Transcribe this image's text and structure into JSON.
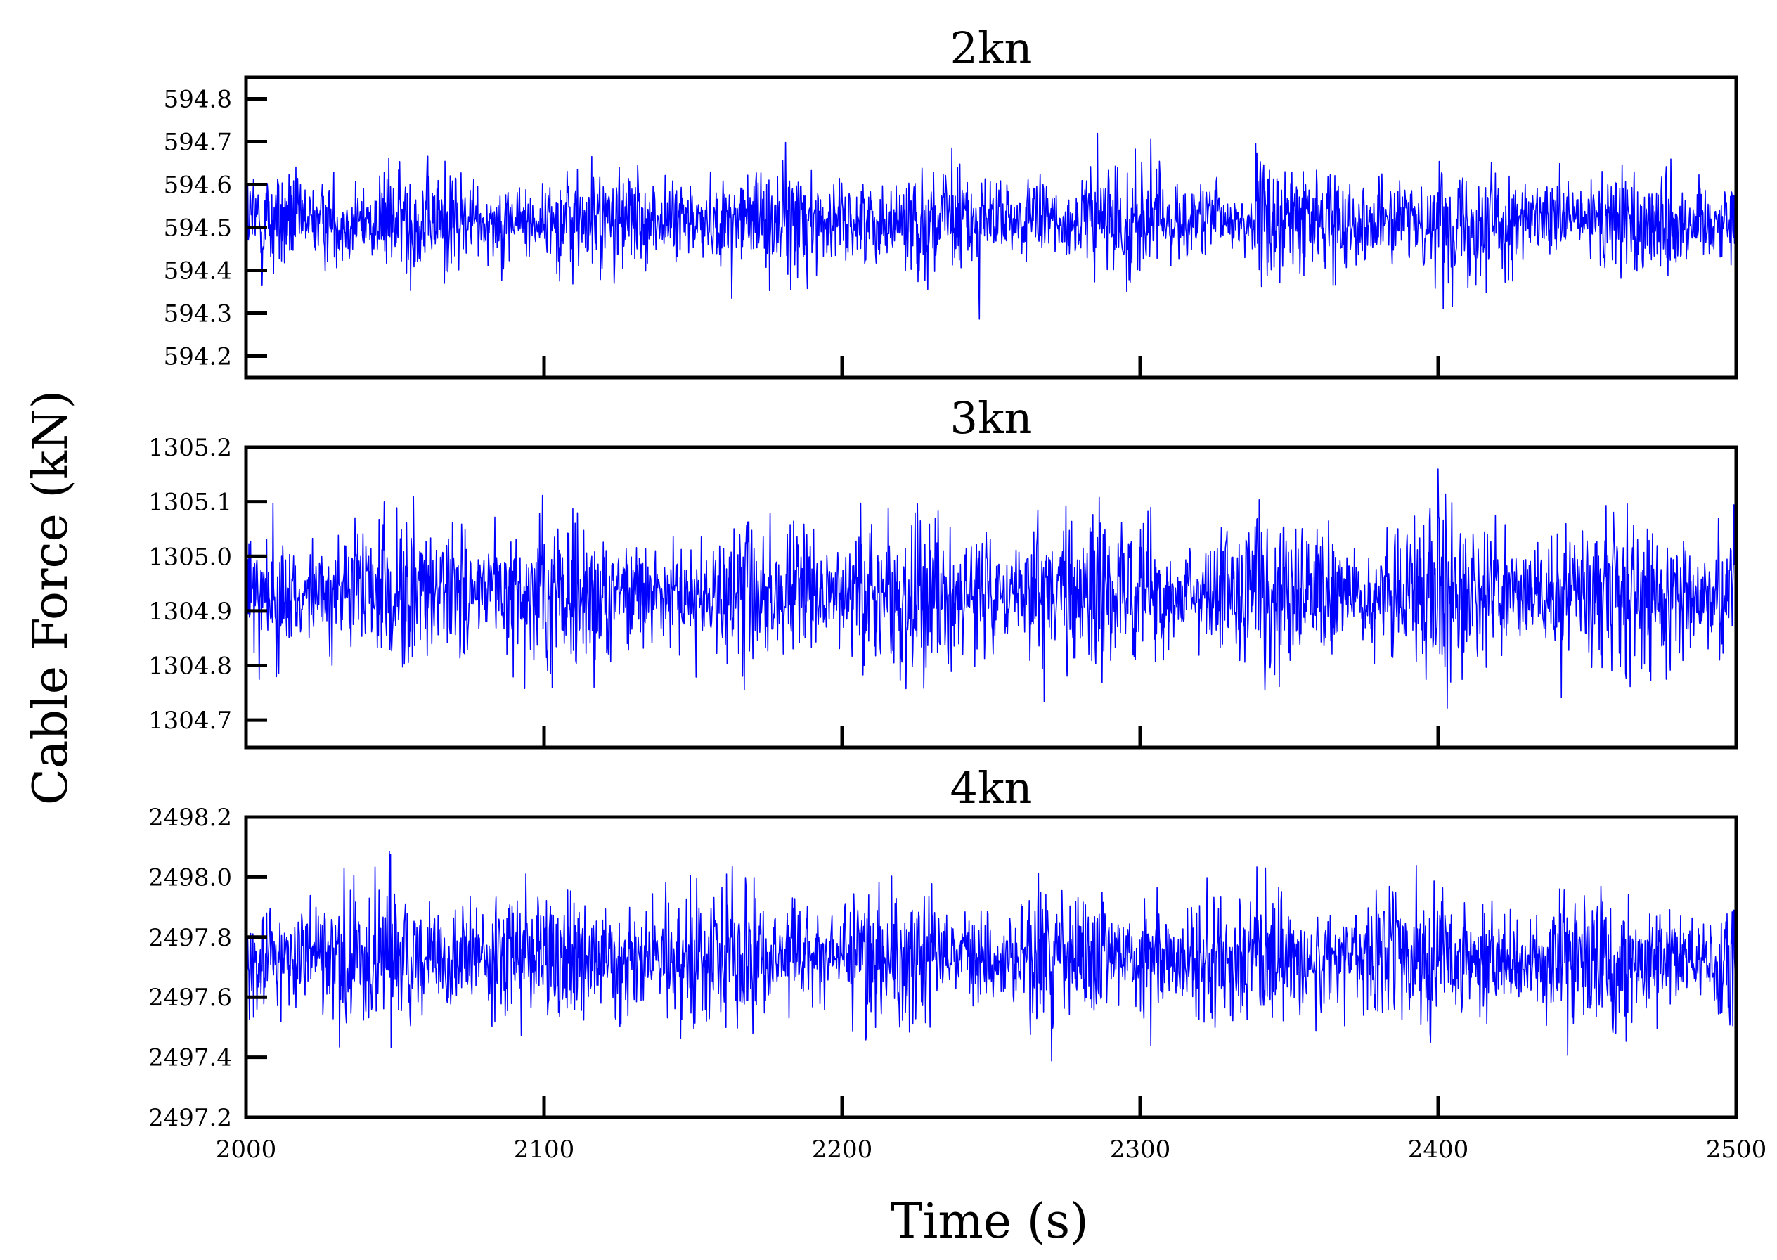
{
  "figure": {
    "xlabel": "Time (s)",
    "ylabel": "Cable Force (kN)"
  },
  "chart_data": [
    {
      "type": "line",
      "title": "2kn",
      "xlim": [
        2000,
        2500
      ],
      "ylim": [
        594.15,
        594.85
      ],
      "yticks": [
        594.2,
        594.3,
        594.4,
        594.5,
        594.6,
        594.7,
        594.8
      ],
      "ytick_labels": [
        "594.2",
        "594.3",
        "594.4",
        "594.5",
        "594.6",
        "594.7",
        "594.8"
      ],
      "xticks": [
        2000,
        2100,
        2200,
        2300,
        2400,
        2500
      ],
      "xtick_labels": [
        "",
        "",
        "",
        "",
        "",
        ""
      ],
      "series": [
        {
          "color": "#0000ff",
          "mean": 594.515,
          "std": 0.055,
          "min": 594.24,
          "max": 594.76
        }
      ]
    },
    {
      "type": "line",
      "title": "3kn",
      "xlim": [
        2000,
        2500
      ],
      "ylim": [
        1304.65,
        1305.2
      ],
      "yticks": [
        1304.7,
        1304.8,
        1304.9,
        1305.0,
        1305.1,
        1305.2
      ],
      "ytick_labels": [
        "1304.7",
        "1304.8",
        "1304.9",
        "1305.0",
        "1305.1",
        "1305.2"
      ],
      "xticks": [
        2000,
        2100,
        2200,
        2300,
        2400,
        2500
      ],
      "xtick_labels": [
        "",
        "",
        "",
        "",
        "",
        ""
      ],
      "series": [
        {
          "color": "#0000ff",
          "mean": 1304.93,
          "std": 0.06,
          "min": 1304.69,
          "max": 1305.16
        }
      ]
    },
    {
      "type": "line",
      "title": "4kn",
      "xlim": [
        2000,
        2500
      ],
      "ylim": [
        2497.2,
        2498.2
      ],
      "yticks": [
        2497.2,
        2497.4,
        2497.6,
        2497.8,
        2498.0,
        2498.2
      ],
      "ytick_labels": [
        "2497.2",
        "2497.4",
        "2497.6",
        "2497.8",
        "2498.0",
        "2498.2"
      ],
      "xticks": [
        2000,
        2100,
        2200,
        2300,
        2400,
        2500
      ],
      "xtick_labels": [
        "2000",
        "2100",
        "2200",
        "2300",
        "2400",
        "2500"
      ],
      "series": [
        {
          "color": "#0000ff",
          "mean": 2497.73,
          "std": 0.1,
          "min": 2497.27,
          "max": 2498.11
        }
      ]
    }
  ]
}
